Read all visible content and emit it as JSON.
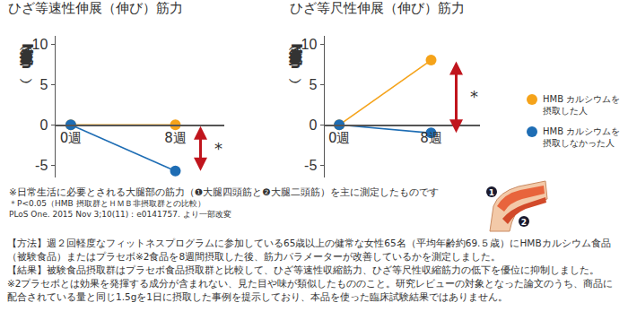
{
  "chart_data": [
    {
      "type": "line",
      "title": "ひざ等速性伸展（伸び）筋力",
      "y_label": "筋力変化量（Nm）",
      "categories": [
        "0週",
        "8週"
      ],
      "series": [
        {
          "name": "HMB カルシウムを摂取した人",
          "color": "#f5a31a",
          "marker": "circle",
          "values": [
            0,
            0
          ]
        },
        {
          "name": "HMB カルシウムを摂取しなかった人",
          "color": "#1e6db4",
          "marker": "circle",
          "values": [
            0,
            -5.7
          ]
        }
      ],
      "ylim": [
        -6.5,
        11
      ],
      "yticks": [
        -5,
        0,
        5,
        10
      ],
      "grid": false,
      "significance": {
        "category": "8週",
        "text": "*",
        "color": "#c0151d"
      }
    },
    {
      "type": "line",
      "title": "ひざ等尺性伸展（伸び）筋力",
      "y_label": "筋力変化量（Nm）",
      "categories": [
        "0週",
        "8週"
      ],
      "series": [
        {
          "name": "HMB カルシウムを摂取した人",
          "color": "#f5a31a",
          "marker": "circle",
          "values": [
            0,
            8
          ]
        },
        {
          "name": "HMB カルシウムを摂取しなかった人",
          "color": "#1e6db4",
          "marker": "circle",
          "values": [
            0,
            -1
          ]
        }
      ],
      "ylim": [
        -6.5,
        11
      ],
      "yticks": [
        -5,
        0,
        5,
        10
      ],
      "grid": false,
      "significance": {
        "category": "8週",
        "text": "*",
        "color": "#c0151d"
      }
    }
  ],
  "notes": [
    "※日常生活に必要とされる大腿部の筋力（❶大腿四頭筋と❷大腿二頭筋）を主に測定したものです",
    "＊P<0.05（HMB 摂取群とＨＭＢ非摂取群との比較）",
    "PLoS One. 2015 Nov 3;10(11)：e0141757. より一部改変"
  ],
  "figure_labels": [
    "1",
    "2"
  ],
  "paragraphs": [
    "【方法】週２回軽度なフィットネスプログラムに参加している65歳以上の健常な女性65名（平均年齢約69.５歳）にHMBカルシウム食品（被験食品）またはプラセボ※2食品を8週間摂取した後、筋力パラメーターが改善しているかを測定しました。",
    "【結果】被験食品摂取群はプラセボ食品摂取群と比較して、ひざ等速性収縮筋力、ひざ等尺性収縮筋力の低下を優位に抑制しました。",
    "※2プラセボとは効果を発揮する成分が含まれない、見た目や味が類似したもののこと。研究レビューの対象となった論文のうち、商品に配合されている量と同じ1.5gを1日に摂取した事例を提示しており、本品を使った臨床試験結果ではありません。"
  ]
}
